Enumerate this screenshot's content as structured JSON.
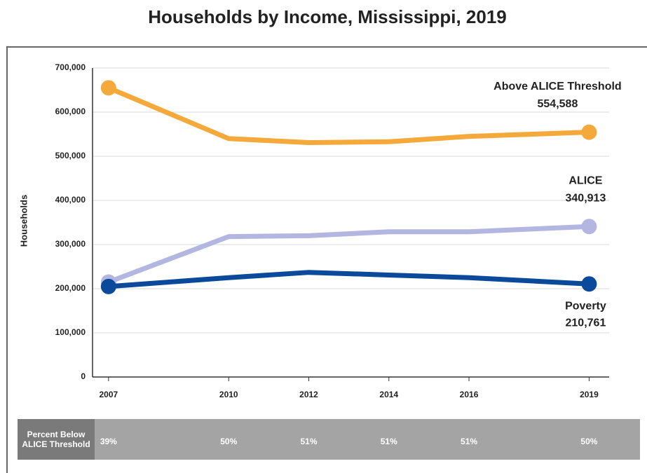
{
  "chart_data": {
    "type": "line",
    "title": "Households by Income, Mississippi, 2019",
    "y_label": "Households",
    "x": [
      2007,
      2010,
      2012,
      2014,
      2016,
      2019
    ],
    "xlim": [
      2006.6,
      2019.5
    ],
    "xticks": [
      2007,
      2010,
      2012,
      2014,
      2016,
      2019
    ],
    "ylim": [
      0,
      700000
    ],
    "yticks": [
      0,
      {
        "value": 100000,
        "label": "100,000"
      },
      {
        "value": 200000,
        "label": "200,000"
      },
      {
        "value": 300000,
        "label": "300,000"
      },
      {
        "value": 400000,
        "label": "400,000"
      },
      {
        "value": 500000,
        "label": "500,000"
      },
      {
        "value": 600000,
        "label": "600,000"
      },
      {
        "value": 700000,
        "label": "700,000"
      }
    ],
    "grid": true,
    "series": [
      {
        "name": "Above ALICE Threshold",
        "color": "#f5a93a",
        "values": [
          655000,
          540000,
          531000,
          533000,
          545000,
          554588
        ],
        "end_label": "554,588"
      },
      {
        "name": "ALICE",
        "color": "#b3b6e0",
        "values": [
          215000,
          318000,
          320000,
          329000,
          329000,
          340913
        ],
        "end_label": "340,913"
      },
      {
        "name": "Poverty",
        "color": "#0b4a9a",
        "values": [
          205000,
          225000,
          237000,
          231000,
          225000,
          210761
        ],
        "end_label": "210,761"
      }
    ],
    "percent_row": {
      "label": "Percent Below ALICE Threshold",
      "labels": [
        "39%",
        "50%",
        "51%",
        "51%",
        "51%",
        "50%"
      ]
    }
  }
}
